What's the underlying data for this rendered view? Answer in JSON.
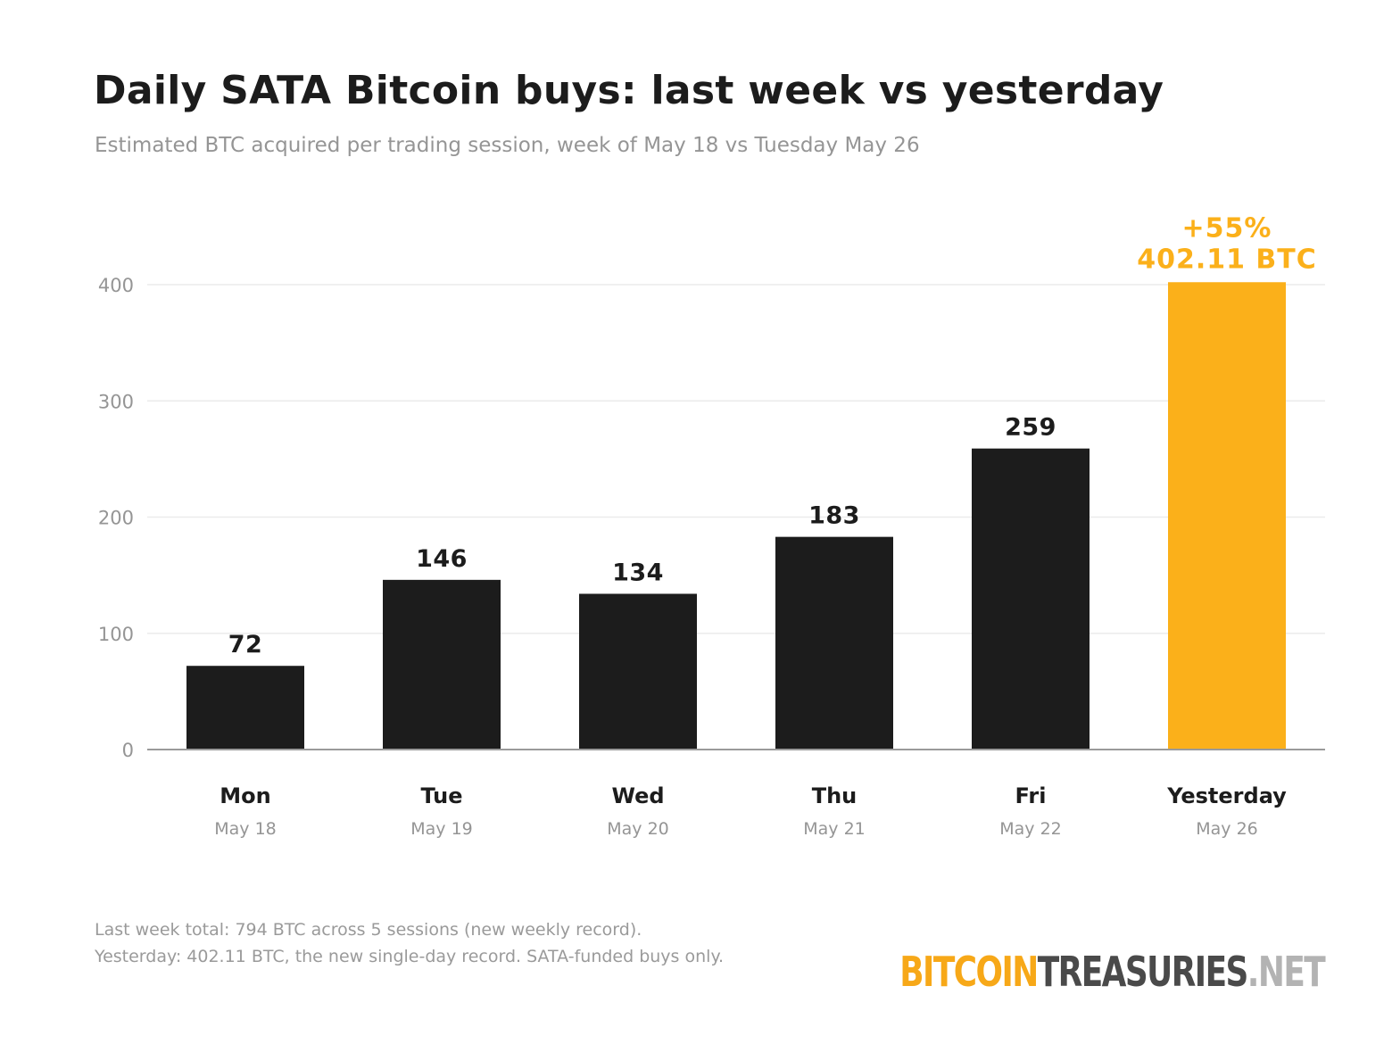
{
  "title": "Daily SATA Bitcoin buys: last week vs yesterday",
  "subtitle": "Estimated BTC acquired per trading session, week of May 18 vs Tuesday May 26",
  "footnotes": [
    "Last week total: 794 BTC across 5 sessions (new weekly record).",
    "Yesterday: 402.11 BTC, the new single-day record. SATA-funded buys only."
  ],
  "brand": {
    "part1": "BITCOIN",
    "part2": "TREASURIES",
    "part3": ".NET",
    "color1": "#f7a818",
    "color2": "#4a4a4a",
    "color3": "#b3b3b3"
  },
  "colors": {
    "bar": "#1c1c1c",
    "highlight": "#fbb01a",
    "grid": "#ebebeb",
    "axis": "#9a9a9a",
    "tick_label": "#959595"
  },
  "chart_data": {
    "type": "bar",
    "categories": [
      "Mon",
      "Tue",
      "Wed",
      "Thu",
      "Fri",
      "Yesterday"
    ],
    "sublabels": [
      "May 18",
      "May 19",
      "May 20",
      "May 21",
      "May 22",
      "May 26"
    ],
    "values": [
      72,
      146,
      134,
      183,
      259,
      402.11
    ],
    "value_labels": [
      "72",
      "146",
      "134",
      "183",
      "259",
      "402.11 BTC"
    ],
    "highlight_index": 5,
    "highlight_annotation": "+55%",
    "ylim": [
      0,
      400
    ],
    "yticks": [
      0,
      100,
      200,
      300,
      400
    ],
    "xlabel": "",
    "ylabel": "",
    "grid": true
  }
}
